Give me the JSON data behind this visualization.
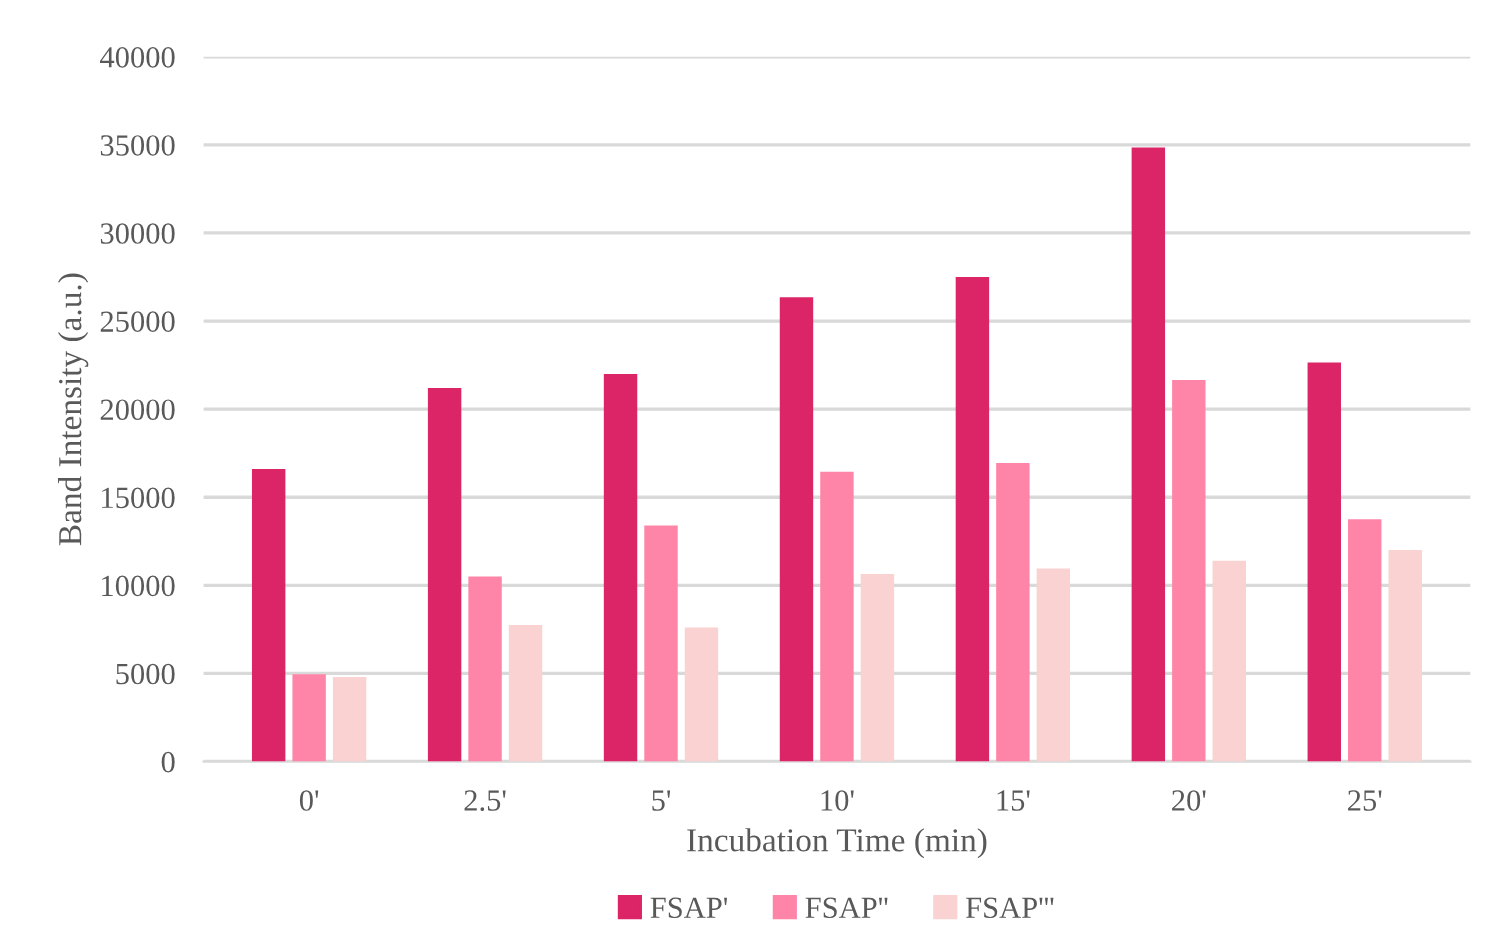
{
  "chart_data": {
    "type": "bar",
    "xlabel": "Incubation Time (min)",
    "ylabel": "Band Intensity (a.u.)",
    "categories": [
      "0'",
      "2.5'",
      "5'",
      "10'",
      "15'",
      "20'",
      "25'"
    ],
    "series": [
      {
        "name": "FSAP'",
        "color": "#db2567",
        "values": [
          16600,
          21200,
          22000,
          26350,
          27500,
          34850,
          22650
        ]
      },
      {
        "name": "FSAP''",
        "color": "#ff85a8",
        "values": [
          4950,
          10500,
          13400,
          16450,
          16950,
          21650,
          13750
        ]
      },
      {
        "name": "FSAP'''",
        "color": "#fad2d2",
        "values": [
          4800,
          7750,
          7600,
          10650,
          10950,
          11400,
          12000
        ]
      }
    ],
    "ylim": [
      0,
      40000
    ],
    "yticks": [
      0,
      5000,
      10000,
      15000,
      20000,
      25000,
      30000,
      35000,
      40000
    ],
    "grid": "y",
    "legend": "bottom"
  }
}
